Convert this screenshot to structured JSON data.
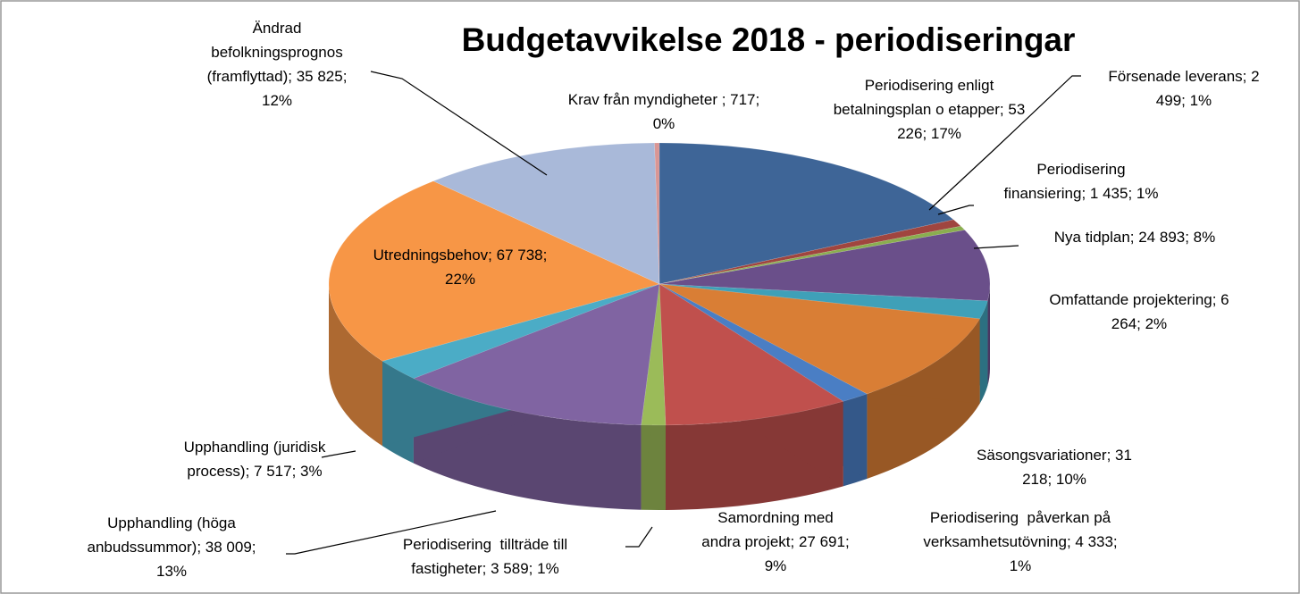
{
  "chart_data": {
    "type": "pie3d",
    "title": "Budgetavvikelse 2018 - periodiseringar",
    "categories": [
      "Periodisering enligt betalningsplan o etapper; 53 226; 17%",
      "Försenade leverans; 2 499; 1%",
      "Periodisering finansiering; 1 435; 1%",
      "Nya tidplan; 24 893; 8%",
      "Omfattande projektering; 6 264; 2%",
      "Säsongsvariationer; 31 218; 10%",
      "Periodisering  påverkan på verksamhetsutövning; 4 333; 1%",
      "Samordning med andra projekt; 27 691; 9%",
      "Periodisering  tillträde till fastigheter; 3 589; 1%",
      "Upphandling (höga anbudssummor); 38 009; 13%",
      "Upphandling (juridisk process); 7 517; 3%",
      "Utredningsbehov; 67 738; 22%",
      "Ändrad befolkningsprognos (framflyttad); 35 825; 12%",
      "Krav från myndigheter ; 717; 0%"
    ],
    "values": [
      53226,
      2499,
      1435,
      24893,
      6264,
      31218,
      4333,
      27691,
      3589,
      38009,
      7517,
      67738,
      35825,
      717
    ],
    "colors": [
      "#3E6597",
      "#A0453F",
      "#8AAE4F",
      "#6A4F8A",
      "#3FA0B8",
      "#D97E35",
      "#4A7EC4",
      "#C0504D",
      "#9BBB59",
      "#8064A2",
      "#4BACC6",
      "#F79646",
      "#A9B9D9",
      "#D99694"
    ]
  }
}
